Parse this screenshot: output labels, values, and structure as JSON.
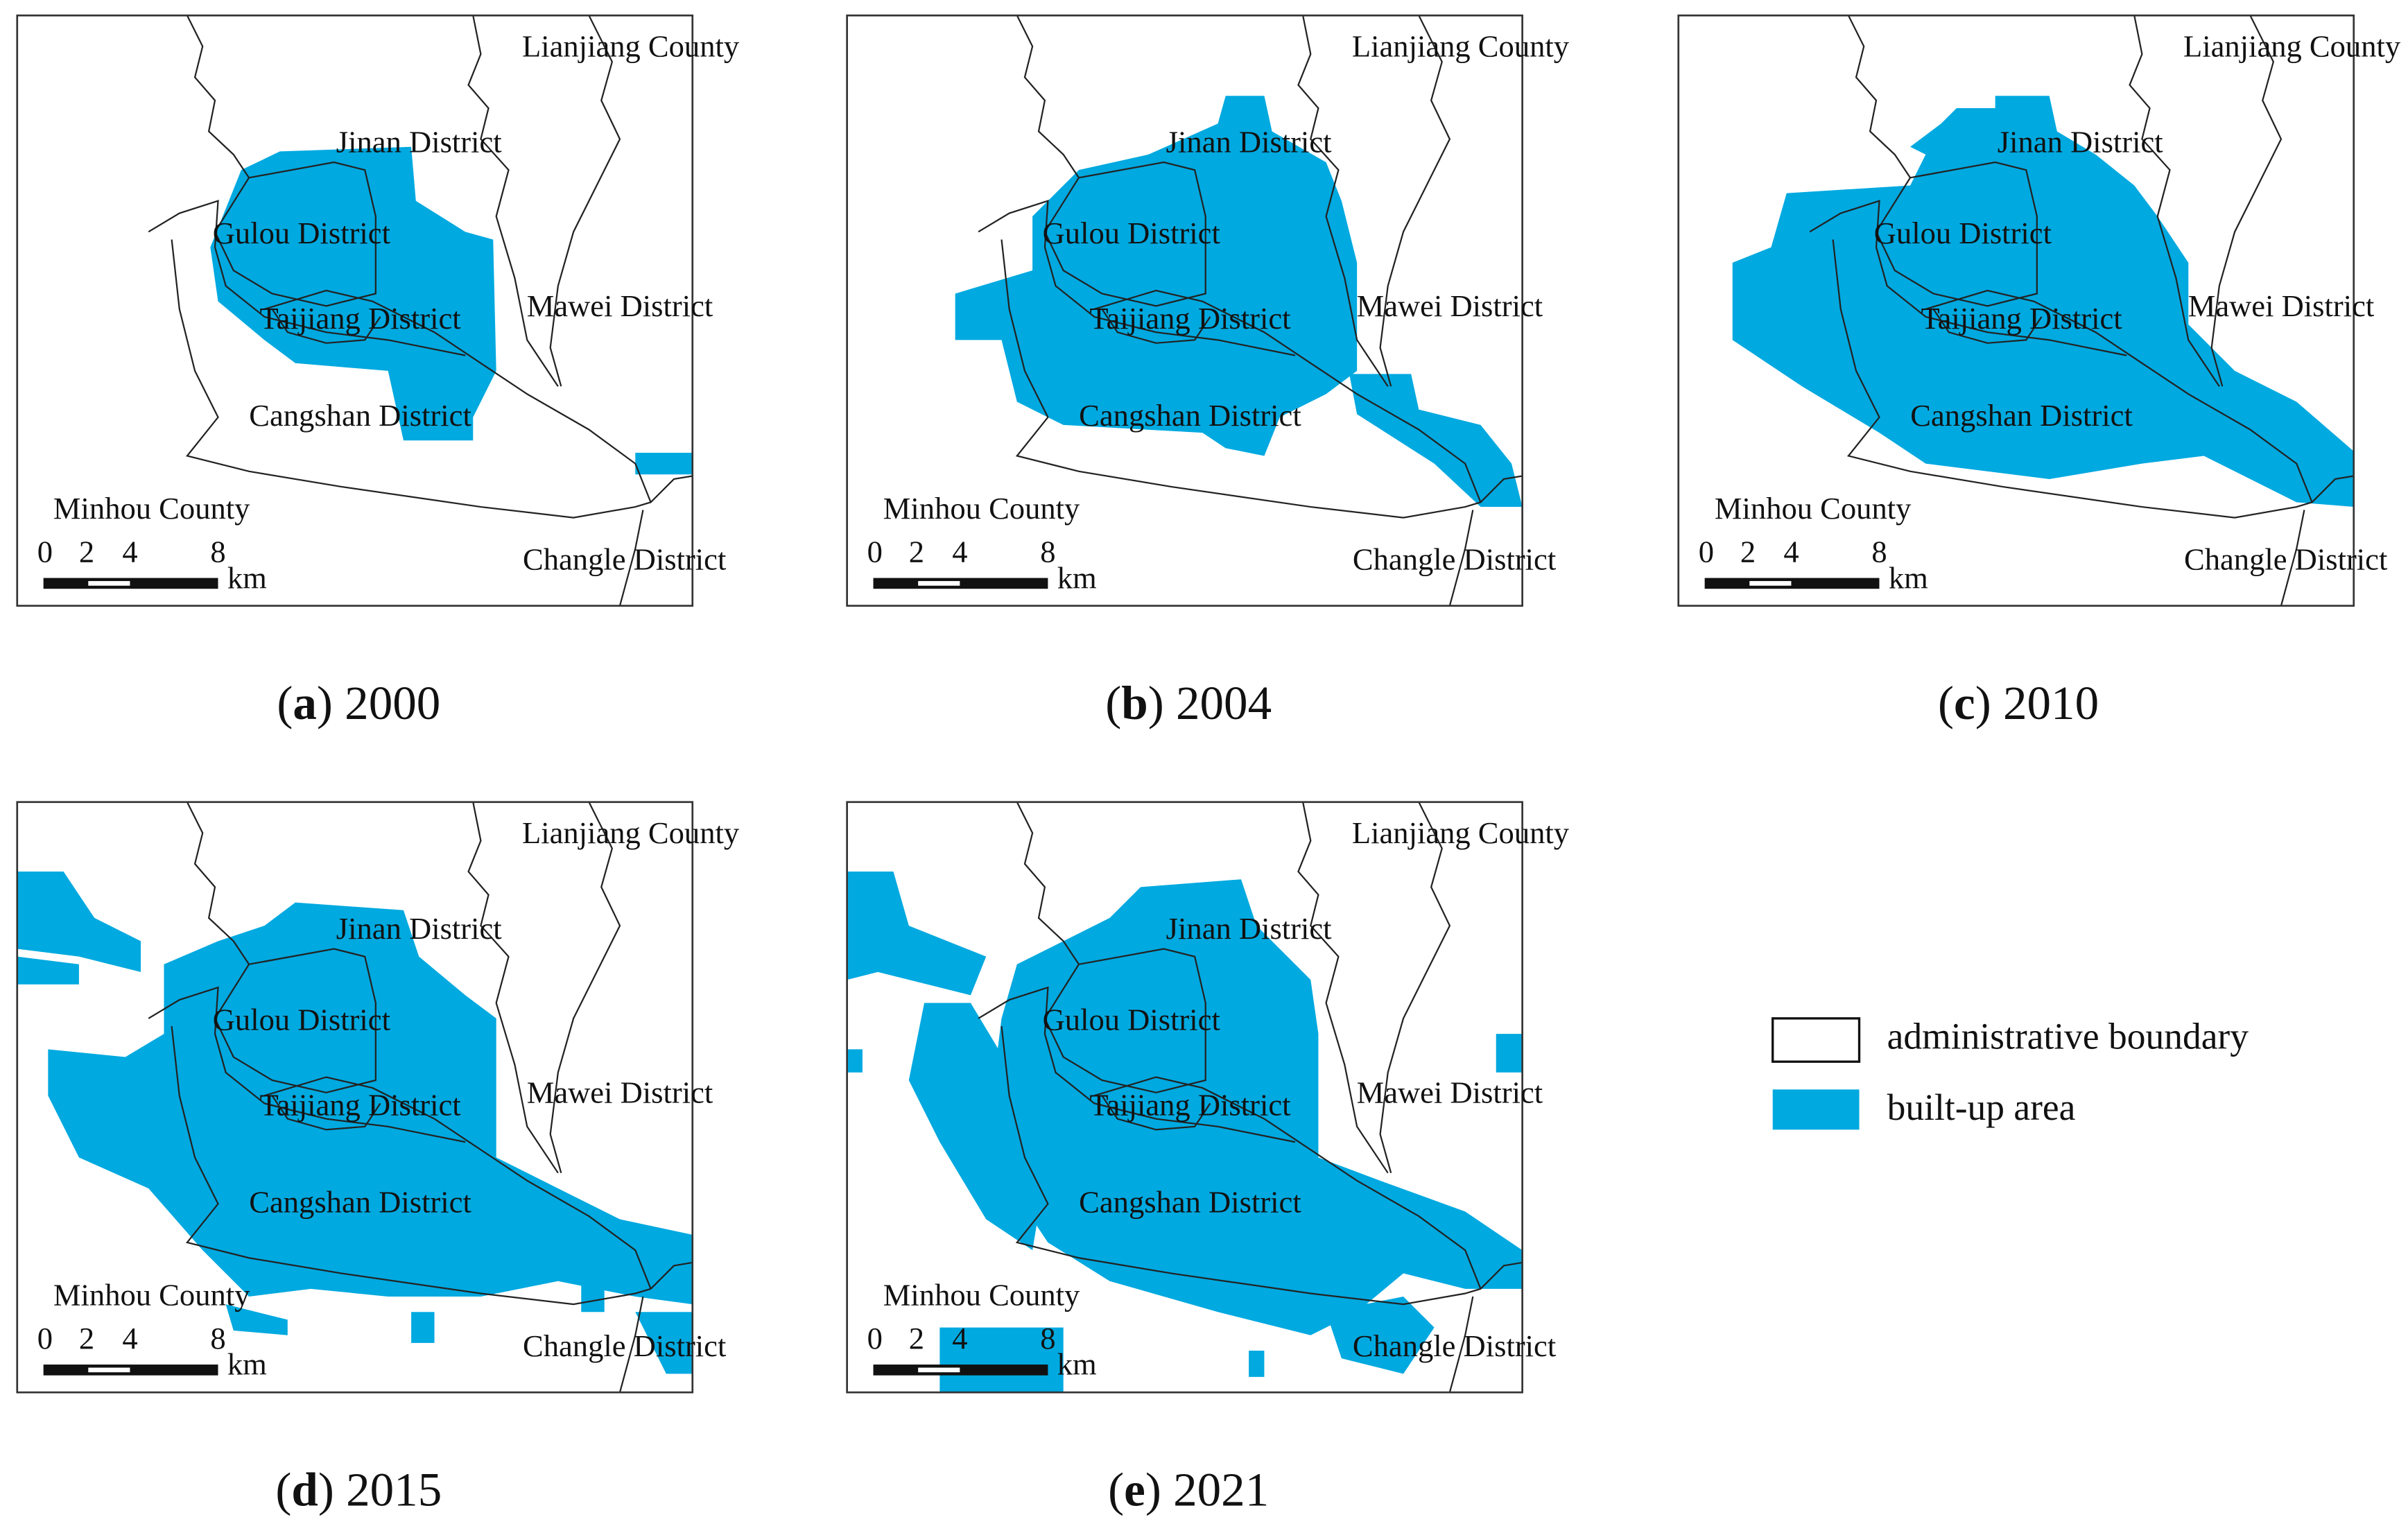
{
  "panels": [
    {
      "caption": {
        "open": "(",
        "letter": "a",
        "rest": ") 2000"
      },
      "labels": [
        "Lianjiang County",
        "Jinan District",
        "Gulou District",
        "Mawei District",
        "Taijiang District",
        "Cangshan District",
        "Minhou County",
        "Changle District"
      ],
      "scale": [
        "0",
        "2",
        "4",
        "8"
      ],
      "unit": "km"
    },
    {
      "caption": {
        "open": "(",
        "letter": "b",
        "rest": ") 2004"
      },
      "labels": [
        "Lianjiang County",
        "Jinan District",
        "Gulou District",
        "Mawei District",
        "Taijiang District",
        "Cangshan District",
        "Minhou County",
        "Changle District"
      ],
      "scale": [
        "0",
        "2",
        "4",
        "8"
      ],
      "unit": "km"
    },
    {
      "caption": {
        "open": "(",
        "letter": "c",
        "rest": ") 2010"
      },
      "labels": [
        "Lianjiang County",
        "Jinan District",
        "Gulou District",
        "Mawei District",
        "Taijiang District",
        "Cangshan District",
        "Minhou County",
        "Changle District"
      ],
      "scale": [
        "0",
        "2",
        "4",
        "8"
      ],
      "unit": "km"
    },
    {
      "caption": {
        "open": "(",
        "letter": "d",
        "rest": ") 2015"
      },
      "labels": [
        "Lianjiang County",
        "Jinan District",
        "Gulou District",
        "Mawei District",
        "Taijiang District",
        "Cangshan District",
        "Minhou County",
        "Changle District"
      ],
      "scale": [
        "0",
        "2",
        "4",
        "8"
      ],
      "unit": "km"
    },
    {
      "caption": {
        "open": "(",
        "letter": "e",
        "rest": ") 2021"
      },
      "labels": [
        "Lianjiang County",
        "Jinan District",
        "Gulou District",
        "Mawei District",
        "Taijiang District",
        "Cangshan District",
        "Minhou County",
        "Changle District"
      ],
      "scale": [
        "0",
        "2",
        "4",
        "8"
      ],
      "unit": "km"
    }
  ],
  "legend": [
    {
      "label": "administrative boundary"
    },
    {
      "label": "built-up area"
    }
  ]
}
